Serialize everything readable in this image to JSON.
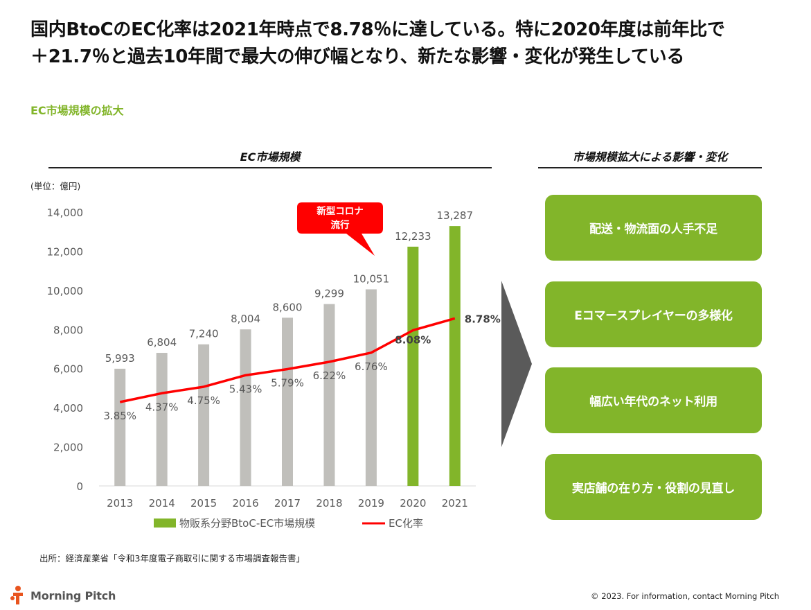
{
  "headline": {
    "line1": "国内BtoCのEC化率は2021年時点で8.78％に達している。特に2020年度は前年比で",
    "line2": "＋21.7％と過去10年間で最大の伸び幅となり、新たな影響・変化が発生している"
  },
  "section_title": "EC市場規模の拡大",
  "left_column_title": "EC市場規模",
  "right_column_title": "市場規模拡大による影響・変化",
  "unit_label": "(単位：億円)",
  "callout": {
    "line1": "新型コロナ",
    "line2": "流行"
  },
  "impacts": [
    {
      "label": "配送・物流面の人手不足"
    },
    {
      "label": "Eコマースプレイヤーの多様化"
    },
    {
      "label": "幅広い年代のネット利用"
    },
    {
      "label": "実店舗の在り方・役割の見直し"
    }
  ],
  "source": "出所：経済産業省「令和3年度電子商取引に関する市場調査報告書」",
  "brand": {
    "name": "Morning Pitch"
  },
  "copyright": "© 2023. For information, contact Morning Pitch",
  "colors": {
    "accent_green": "#82b52a",
    "bar_gray": "#c0bfbb",
    "bar_highlight": "#82b52a",
    "line_red": "#ff0000",
    "callout_red": "#ff0000",
    "arrow_gray": "#5a5a5a",
    "logo_orange": "#e8541e"
  },
  "chart_data": {
    "type": "bar",
    "categories": [
      "2013",
      "2014",
      "2015",
      "2016",
      "2017",
      "2018",
      "2019",
      "2020",
      "2021"
    ],
    "series": [
      {
        "name": "物販系分野BtoC-EC市場規模",
        "type": "bar",
        "values": [
          5993,
          6804,
          7240,
          8004,
          8600,
          9299,
          10051,
          12233,
          13287
        ],
        "labels": [
          "5,993",
          "6,804",
          "7,240",
          "8,004",
          "8,600",
          "9,299",
          "10,051",
          "12,233",
          "13,287"
        ],
        "highlight_categories": [
          "2020",
          "2021"
        ]
      },
      {
        "name": "EC化率",
        "type": "line",
        "values": [
          3.85,
          4.37,
          4.75,
          5.43,
          5.79,
          6.22,
          6.76,
          8.08,
          8.78
        ],
        "labels": [
          "3.85%",
          "4.37%",
          "4.75%",
          "5.43%",
          "5.79%",
          "6.22%",
          "6.76%",
          "8.08%",
          "8.78%"
        ]
      }
    ],
    "yticks": [
      "0",
      "2,000",
      "4,000",
      "6,000",
      "8,000",
      "10,000",
      "12,000",
      "14,000"
    ],
    "ylim": [
      0,
      14000
    ],
    "legend": "bottom",
    "grid": false
  }
}
